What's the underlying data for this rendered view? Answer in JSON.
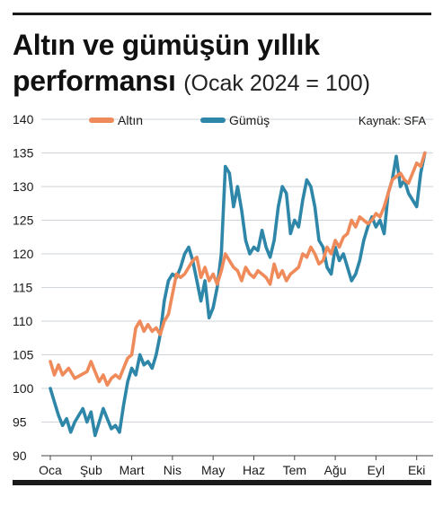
{
  "title_line1": "Altın ve gümüşün yıllık",
  "title_line2": "performansı",
  "title_paren": "(Ocak 2024 = 100)",
  "source": "Kaynak: SFA",
  "colors": {
    "gold": "#ef8a5a",
    "silver": "#2e86a8",
    "grid": "#cfd5da",
    "axis": "#444444"
  },
  "chart_data": {
    "type": "line",
    "categories": [
      "Oca",
      "Şub",
      "Mart",
      "Nis",
      "May",
      "Haz",
      "Tem",
      "Ağu",
      "Eyl",
      "Eki"
    ],
    "ylim": [
      90,
      140
    ],
    "yticks": [
      90,
      95,
      100,
      105,
      110,
      115,
      120,
      125,
      130,
      135,
      140
    ],
    "legend_position": "top",
    "grid": true,
    "series": [
      {
        "name": "Altın",
        "color": "#ef8a5a",
        "x": [
          0.0,
          0.1,
          0.2,
          0.3,
          0.45,
          0.6,
          0.75,
          0.9,
          1.0,
          1.1,
          1.2,
          1.3,
          1.4,
          1.5,
          1.6,
          1.7,
          1.8,
          1.9,
          2.0,
          2.1,
          2.2,
          2.3,
          2.4,
          2.5,
          2.6,
          2.7,
          2.8,
          2.9,
          3.0,
          3.1,
          3.2,
          3.3,
          3.4,
          3.5,
          3.6,
          3.7,
          3.8,
          3.9,
          4.0,
          4.1,
          4.2,
          4.3,
          4.4,
          4.5,
          4.6,
          4.7,
          4.8,
          4.9,
          5.0,
          5.1,
          5.2,
          5.3,
          5.4,
          5.5,
          5.6,
          5.7,
          5.8,
          5.9,
          6.0,
          6.1,
          6.2,
          6.3,
          6.4,
          6.5,
          6.6,
          6.7,
          6.8,
          6.9,
          7.0,
          7.1,
          7.2,
          7.3,
          7.4,
          7.5,
          7.6,
          7.7,
          7.8,
          7.9,
          8.0,
          8.1,
          8.2,
          8.3,
          8.4,
          8.5,
          8.6,
          8.7,
          8.8,
          8.9,
          9.0,
          9.1,
          9.2
        ],
        "values": [
          104,
          102,
          103.5,
          102,
          103,
          101.5,
          102,
          102.5,
          104,
          102.5,
          101,
          102,
          100.5,
          101.5,
          102,
          101.5,
          103,
          104.5,
          105,
          109,
          110,
          108.5,
          109.5,
          108.5,
          109,
          108,
          110,
          111,
          114,
          117,
          116.5,
          117,
          118,
          119,
          119.5,
          116.5,
          118,
          116,
          117,
          115.5,
          117.5,
          120,
          119,
          118,
          117.5,
          116,
          118,
          117,
          116.5,
          117.5,
          117,
          116.5,
          115.5,
          118.5,
          116.5,
          117.5,
          116,
          117,
          117.5,
          118,
          120,
          119.5,
          121,
          120,
          118.5,
          119,
          121,
          120,
          122,
          121,
          122.5,
          123,
          125,
          124,
          125.5,
          125,
          124.5,
          125,
          126,
          125.5,
          127,
          129,
          131,
          131.5,
          132,
          131,
          130.5,
          132,
          133.5,
          133,
          135
        ]
      },
      {
        "name": "Gümüş",
        "color": "#2e86a8",
        "x": [
          0.0,
          0.1,
          0.2,
          0.3,
          0.4,
          0.5,
          0.6,
          0.7,
          0.8,
          0.9,
          1.0,
          1.1,
          1.2,
          1.3,
          1.4,
          1.5,
          1.6,
          1.7,
          1.8,
          1.9,
          2.0,
          2.1,
          2.2,
          2.3,
          2.4,
          2.5,
          2.6,
          2.7,
          2.8,
          2.9,
          3.0,
          3.1,
          3.2,
          3.3,
          3.4,
          3.5,
          3.6,
          3.7,
          3.8,
          3.9,
          4.0,
          4.1,
          4.2,
          4.3,
          4.4,
          4.5,
          4.6,
          4.7,
          4.8,
          4.9,
          5.0,
          5.1,
          5.2,
          5.3,
          5.4,
          5.5,
          5.6,
          5.7,
          5.8,
          5.9,
          6.0,
          6.1,
          6.2,
          6.3,
          6.4,
          6.5,
          6.6,
          6.7,
          6.8,
          6.9,
          7.0,
          7.1,
          7.2,
          7.3,
          7.4,
          7.5,
          7.6,
          7.7,
          7.8,
          7.9,
          8.0,
          8.1,
          8.2,
          8.3,
          8.4,
          8.5,
          8.6,
          8.7,
          8.8,
          8.9,
          9.0,
          9.1,
          9.2
        ],
        "values": [
          100,
          98,
          96,
          94.5,
          95.5,
          93.5,
          95,
          96,
          97,
          95,
          96.5,
          93,
          95,
          97,
          95.5,
          94,
          94.5,
          93.5,
          97.5,
          101,
          103,
          102,
          105,
          103.5,
          104,
          103,
          105,
          108,
          113,
          116,
          117,
          116.5,
          118,
          120,
          121,
          119,
          116,
          113,
          116,
          110.5,
          112,
          115,
          120,
          133,
          132,
          127,
          130,
          126.5,
          122,
          120,
          121,
          120.5,
          123.5,
          121,
          119.5,
          122,
          127,
          130,
          129,
          123,
          125,
          124,
          128,
          131,
          130,
          127,
          122,
          121,
          118,
          117,
          121,
          119,
          120,
          118,
          116,
          117,
          119,
          122,
          124,
          125.5,
          124,
          125,
          123,
          129,
          131,
          134.5,
          130,
          131,
          129,
          128,
          127,
          132,
          135
        ]
      }
    ]
  }
}
